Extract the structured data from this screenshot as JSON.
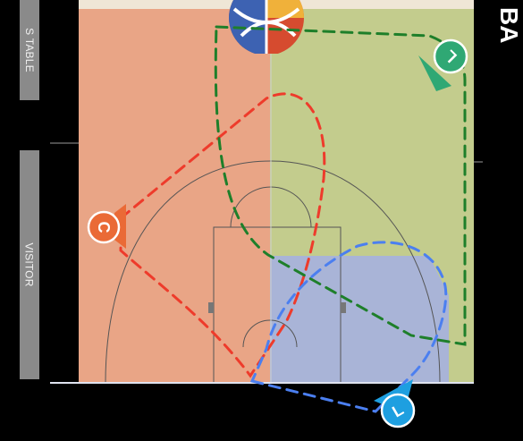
{
  "side_labels": {
    "table": "S TABLE",
    "visitor": "VISITOR"
  },
  "brand_text": "BA",
  "players": [
    {
      "letter": "C",
      "color": "#ea6a36"
    },
    {
      "letter": "L",
      "color": "#2fa874"
    },
    {
      "letter": "L",
      "color": "#1e9fe0"
    }
  ],
  "zone_colors": {
    "red_zone": "#e9a586",
    "green_zone": "#c3cc8d",
    "blue_zone": "#a9b4d7",
    "red_route": "#ee3b2b",
    "green_route": "#1e7f2a",
    "blue_route": "#4b7ff0"
  },
  "icons": {
    "logo": "basketball-logo-icon"
  }
}
